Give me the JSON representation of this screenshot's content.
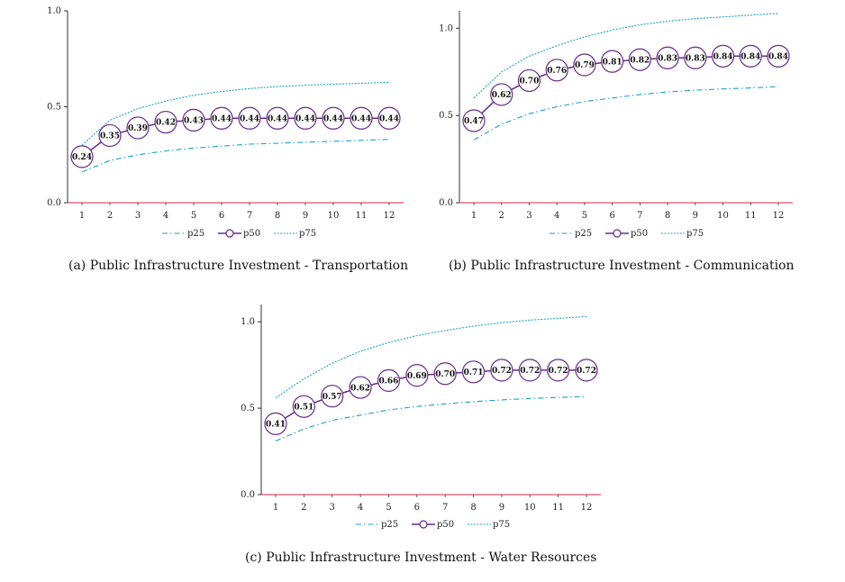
{
  "colors": {
    "p25": "#1aa0c8",
    "p50": "#6a2a86",
    "p75": "#1aa0c8",
    "zero_line": "#e0506a",
    "axis": "#333333"
  },
  "chart_data": [
    {
      "type": "line",
      "caption": "(a)  Public Infrastructure Investment - Transportation",
      "x": [
        1,
        2,
        3,
        4,
        5,
        6,
        7,
        8,
        9,
        10,
        11,
        12
      ],
      "ylim": [
        0,
        1.0
      ],
      "yticks": [
        "0.0",
        "0.5",
        "1.0"
      ],
      "series": [
        {
          "name": "p25",
          "style": "dashdot",
          "values": [
            0.16,
            0.22,
            0.25,
            0.27,
            0.285,
            0.295,
            0.305,
            0.31,
            0.315,
            0.32,
            0.325,
            0.33
          ]
        },
        {
          "name": "p50",
          "style": "marker",
          "values": [
            0.24,
            0.35,
            0.39,
            0.42,
            0.43,
            0.44,
            0.44,
            0.44,
            0.44,
            0.44,
            0.44,
            0.44
          ],
          "labels": [
            "0.24",
            "0.35",
            "0.39",
            "0.42",
            "0.43",
            "0.44",
            "0.44",
            "0.44",
            "0.44",
            "0.44",
            "0.44",
            "0.44"
          ]
        },
        {
          "name": "p75",
          "style": "dotted",
          "values": [
            0.3,
            0.43,
            0.49,
            0.53,
            0.56,
            0.58,
            0.595,
            0.605,
            0.612,
            0.618,
            0.622,
            0.627
          ]
        }
      ]
    },
    {
      "type": "line",
      "caption": "(b)  Public Infrastructure Investment - Communication",
      "x": [
        1,
        2,
        3,
        4,
        5,
        6,
        7,
        8,
        9,
        10,
        11,
        12
      ],
      "ylim": [
        0,
        1.1
      ],
      "yticks": [
        "0.0",
        "0.5",
        "1.0"
      ],
      "series": [
        {
          "name": "p25",
          "style": "dashdot",
          "values": [
            0.36,
            0.45,
            0.51,
            0.55,
            0.58,
            0.6,
            0.62,
            0.635,
            0.645,
            0.652,
            0.658,
            0.665
          ]
        },
        {
          "name": "p50",
          "style": "marker",
          "values": [
            0.47,
            0.62,
            0.7,
            0.76,
            0.79,
            0.81,
            0.82,
            0.83,
            0.83,
            0.84,
            0.84,
            0.84
          ],
          "labels": [
            "0.47",
            "0.62",
            "0.70",
            "0.76",
            "0.79",
            "0.81",
            "0.82",
            "0.83",
            "0.83",
            "0.84",
            "0.84",
            "0.84"
          ]
        },
        {
          "name": "p75",
          "style": "dotted",
          "values": [
            0.6,
            0.75,
            0.84,
            0.9,
            0.95,
            0.99,
            1.02,
            1.04,
            1.055,
            1.065,
            1.075,
            1.085
          ]
        }
      ]
    },
    {
      "type": "line",
      "caption": "(c)  Public Infrastructure Investment - Water Resources",
      "x": [
        1,
        2,
        3,
        4,
        5,
        6,
        7,
        8,
        9,
        10,
        11,
        12
      ],
      "ylim": [
        0,
        1.1
      ],
      "yticks": [
        "0.0",
        "0.5",
        "1.0"
      ],
      "series": [
        {
          "name": "p25",
          "style": "dashdot",
          "values": [
            0.31,
            0.38,
            0.43,
            0.46,
            0.49,
            0.51,
            0.525,
            0.538,
            0.548,
            0.556,
            0.562,
            0.568
          ]
        },
        {
          "name": "p50",
          "style": "marker",
          "values": [
            0.41,
            0.51,
            0.57,
            0.62,
            0.66,
            0.69,
            0.7,
            0.71,
            0.72,
            0.72,
            0.72,
            0.72
          ],
          "labels": [
            "0.41",
            "0.51",
            "0.57",
            "0.62",
            "0.66",
            "0.69",
            "0.70",
            "0.71",
            "0.72",
            "0.72",
            "0.72",
            "0.72"
          ]
        },
        {
          "name": "p75",
          "style": "dotted",
          "values": [
            0.56,
            0.67,
            0.76,
            0.83,
            0.88,
            0.92,
            0.95,
            0.975,
            0.995,
            1.01,
            1.02,
            1.03
          ]
        }
      ]
    }
  ]
}
